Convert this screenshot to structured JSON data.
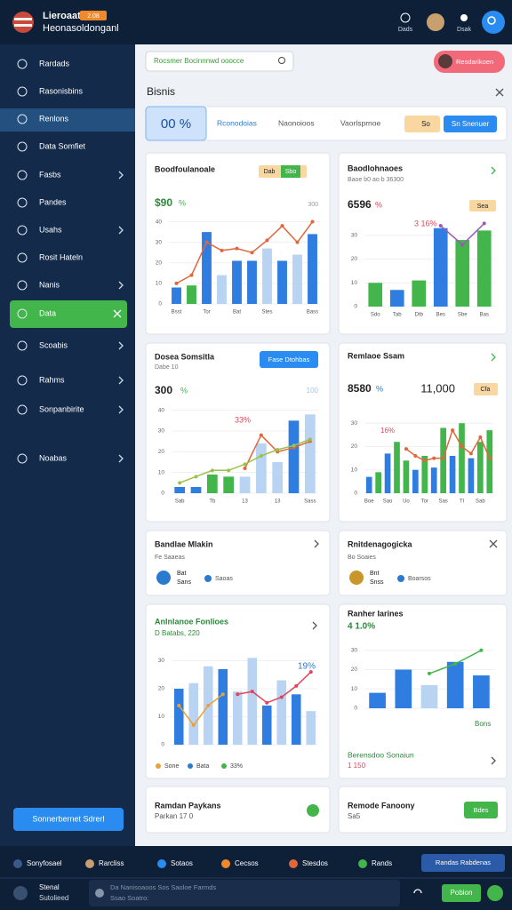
{
  "header": {
    "title": "Lieroaat",
    "badge": "2.08",
    "subtitle": "Heonasoldonganl",
    "icons": [
      "Dads",
      "Dsak"
    ]
  },
  "sidebar": {
    "items": [
      "Rardads",
      "Rasonisbins",
      "Renlons",
      "Data Somfiet",
      "Fasbs",
      "Pandes",
      "Usahs",
      "Rosit Hateln",
      "Nanis",
      "Data",
      "Scoabis",
      "Rahms",
      "Sonpanbirite",
      "Noabas"
    ],
    "button": "Sonnerbernet Sdrerl"
  },
  "search": {
    "placeholder": "Rocsmer Bocinnnwd ooocce",
    "button": "Resdarikoen"
  },
  "page_title": "Bisnis",
  "filters": {
    "percent": "00 %",
    "items": [
      "Rconodoias",
      "Naonoioos",
      "Vaorlsprnoe"
    ],
    "badge": "So",
    "button": "Sn Snenuer"
  },
  "chart_data": [
    {
      "type": "bar",
      "title": "Boodfoulanoale",
      "badges": [
        "Dab",
        "Sbo"
      ],
      "note": "300",
      "value": "$90",
      "value_suffix": "%",
      "categories": [
        "Bsst",
        null,
        "Tor",
        null,
        "Bat",
        null,
        "Stes",
        null,
        null,
        "Bass"
      ],
      "values": [
        8,
        9,
        35,
        14,
        21,
        21,
        27,
        21,
        24,
        34
      ],
      "bar_colors": [
        "#2f7de1",
        "#42b54b",
        "#2f7de1",
        "#b9d3f2",
        "#2f7de1",
        "#2f7de1",
        "#b9d3f2",
        "#2f7de1",
        "#b9d3f2",
        "#2f7de1"
      ],
      "lines": [
        {
          "color": "#e0663c",
          "values": [
            10,
            14,
            30,
            26,
            27,
            25,
            31,
            38,
            30,
            40
          ]
        }
      ],
      "ylim": [
        0,
        45
      ],
      "yticks": [
        0,
        10,
        20,
        30,
        40
      ],
      "grid": true
    },
    {
      "type": "bar",
      "title": "Baodlohnaoes",
      "subtitle": "Baoe b0 ao b 36300",
      "value": "6596",
      "value_suffix": "%",
      "annotation": "3 16%",
      "badges": [
        "Sea"
      ],
      "categories": [
        "Sdo",
        "Tab",
        "Dtb",
        "Bes",
        "Sbe",
        "Bas"
      ],
      "values": [
        10,
        7,
        11,
        33,
        28,
        32
      ],
      "bar_colors": [
        "#42b54b",
        "#2f7de1",
        "#42b54b",
        "#2f7de1",
        "#42b54b",
        "#42b54b"
      ],
      "lines": [
        {
          "color": "#9b59b6",
          "values": [
            null,
            null,
            null,
            34,
            26,
            35
          ]
        }
      ],
      "ylim": [
        0,
        40
      ],
      "yticks": [
        0,
        10,
        20,
        30
      ],
      "grid": true
    },
    {
      "type": "bar",
      "title": "Dosea Somsitla",
      "subtitle": "Dabe 10",
      "button": "Fase Dtohbas",
      "value": "300",
      "value_suffix": "%",
      "annotation": "33%",
      "note": "100",
      "categories": [
        "Sab",
        null,
        "Tb",
        null,
        "13",
        null,
        "13",
        null,
        "Sass"
      ],
      "values": [
        3,
        3,
        9,
        8,
        8,
        24,
        15,
        35,
        38
      ],
      "bar_colors": [
        "#2f7de1",
        "#2f7de1",
        "#42b54b",
        "#42b54b",
        "#b9d3f2",
        "#b9d3f2",
        "#b9d3f2",
        "#2f7de1",
        "#b9d3f2"
      ],
      "lines": [
        {
          "color": "#e0663c",
          "values": [
            null,
            null,
            null,
            null,
            12,
            28,
            20,
            22,
            25
          ]
        },
        {
          "color": "#9ac24a",
          "values": [
            5,
            8,
            11,
            11,
            14,
            18,
            21,
            23,
            26
          ]
        }
      ],
      "ylim": [
        0,
        45
      ],
      "yticks": [
        0,
        10,
        20,
        30,
        40
      ],
      "grid": true
    },
    {
      "type": "bar",
      "title": "Remlaoe Ssam",
      "value": "8580",
      "value_suffix": "%",
      "big_value": "11,000",
      "badges": [
        "Cfa"
      ],
      "annotation": "16%",
      "categories": [
        "Boe",
        null,
        "Sao",
        null,
        "Uo",
        null,
        "Tor",
        null,
        "Sas",
        null,
        "Tl",
        null,
        "Sab",
        null
      ],
      "values": [
        7,
        9,
        17,
        22,
        14,
        10,
        16,
        11,
        28,
        16,
        30,
        15,
        22,
        27
      ],
      "bar_colors": [
        "#2f7de1",
        "#42b54b",
        "#2f7de1",
        "#42b54b",
        "#42b54b",
        "#2f7de1",
        "#42b54b",
        "#2f7de1",
        "#42b54b",
        "#2f7de1",
        "#42b54b",
        "#2f7de1",
        "#42b54b",
        "#42b54b"
      ],
      "lines": [
        {
          "color": "#e0663c",
          "values": [
            null,
            null,
            null,
            null,
            19,
            16,
            14,
            15,
            15,
            27,
            20,
            17,
            24,
            15
          ]
        }
      ],
      "ylim": [
        0,
        40
      ],
      "yticks": [
        0,
        10,
        20,
        30
      ],
      "grid": true
    },
    {
      "type": "bar",
      "title": "Anlnlanoe Fonlioes",
      "subtitle": "D Batabs, 220",
      "annotation": "19%",
      "legend": [
        "Sone",
        "Bata",
        "33%"
      ],
      "categories": [
        null,
        null,
        null,
        null,
        null,
        null,
        null,
        null,
        null,
        null
      ],
      "values": [
        20,
        22,
        28,
        27,
        19,
        31,
        14,
        23,
        18,
        12
      ],
      "bar_colors": [
        "#2f7de1",
        "#b9d3f2",
        "#b9d3f2",
        "#2f7de1",
        "#b9d3f2",
        "#b9d3f2",
        "#2f7de1",
        "#b9d3f2",
        "#2f7de1",
        "#b9d3f2"
      ],
      "lines": [
        {
          "color": "#e0465a",
          "values": [
            null,
            null,
            null,
            null,
            18,
            19,
            15,
            17,
            21,
            26
          ]
        },
        {
          "color": "#e8a23a",
          "values": [
            14,
            7,
            14,
            18,
            null,
            null,
            null,
            null,
            null,
            null
          ]
        }
      ],
      "ylim": [
        0,
        40
      ],
      "yticks": [
        0,
        10,
        20,
        30
      ],
      "grid": true
    },
    {
      "type": "bar",
      "title": "Ranher Iarines",
      "value": "4 1.0%",
      "label": "Bons",
      "footer": [
        "Berensdoo Sonaiun",
        "1 150"
      ],
      "categories": [
        null,
        null,
        null,
        null,
        null
      ],
      "values": [
        8,
        20,
        12,
        24,
        17
      ],
      "bar_colors": [
        "#2f7de1",
        "#2f7de1",
        "#b9d3f2",
        "#2f7de1",
        "#2f7de1"
      ],
      "lines": [
        {
          "color": "#42b54b",
          "values": [
            null,
            null,
            18,
            23,
            30
          ]
        }
      ],
      "ylim": [
        0,
        40
      ],
      "yticks": [
        0,
        10,
        20,
        30
      ],
      "grid": true
    }
  ],
  "mini_cards": [
    {
      "title": "Bandlae Mlakin",
      "subtitle": "Fe Saaeas",
      "items": [
        "Bat",
        "Sans",
        "Saoas"
      ]
    },
    {
      "title": "Rnitdenagogicka",
      "subtitle": "Bo Soaies",
      "items": [
        "Bnt",
        "Snss",
        "Boarsos"
      ]
    }
  ],
  "bottom_cards": [
    {
      "title": "Ramdan Paykans",
      "subtitle": "Parkan 17 0"
    },
    {
      "title": "Remode Fanoony",
      "subtitle": "Sa5",
      "button": "Bdes"
    }
  ],
  "bottom_nav": {
    "items": [
      "Sonyfosael",
      "Rarcliss",
      "Sotaos",
      "Cecsos",
      "Stesdos",
      "Rands"
    ],
    "button": "Randas Rabdenas"
  },
  "chat": {
    "name": "Stenal",
    "status": "Sutolieed",
    "input": [
      "Da Nanisoaoos Sos Saoloe Farmds",
      "Ssao Soatro:"
    ],
    "button": "Pobion"
  }
}
